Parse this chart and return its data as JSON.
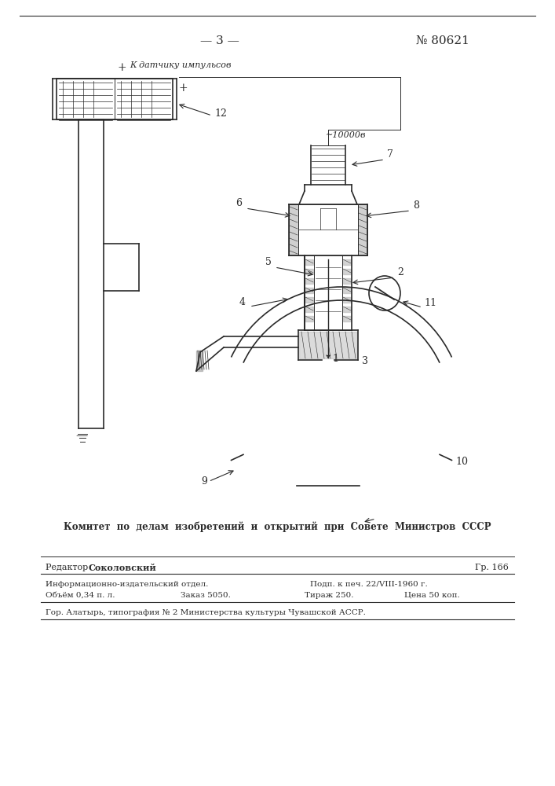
{
  "page_number": "— 3 —",
  "patent_number": "№ 80621",
  "committee_text": "Комитет  по  делам  изобретений  и  открытий  при  Совете  Министров  СССР",
  "editor_label": "Редактор",
  "editor_name": "Соколовский",
  "gr_line": "Гр. 166",
  "info_line1": "Информационно-издательский отдел.",
  "info_line2": "Подп. к печ. 22/VIII-1960 г.",
  "info_line3": "Объём 0,34 п. л.",
  "info_line4": "Заказ 5050.",
  "info_line5": "Тираж 250.",
  "info_line6": "Цена 50 коп.",
  "city_line": "Гор. Алатырь, типография № 2 Министерства культуры Чувашской АССР.",
  "annotation": "К датчику импульсов",
  "voltage_label": "~10000в",
  "label_12": "12",
  "label_7": "7",
  "label_6": "6",
  "label_8": "8",
  "label_5": "5",
  "label_2": "2",
  "label_4": "4",
  "label_11": "11",
  "label_1": "1",
  "label_3": "3",
  "label_9": "9",
  "label_10": "10",
  "bg_color": "#ffffff",
  "line_color": "#2a2a2a"
}
